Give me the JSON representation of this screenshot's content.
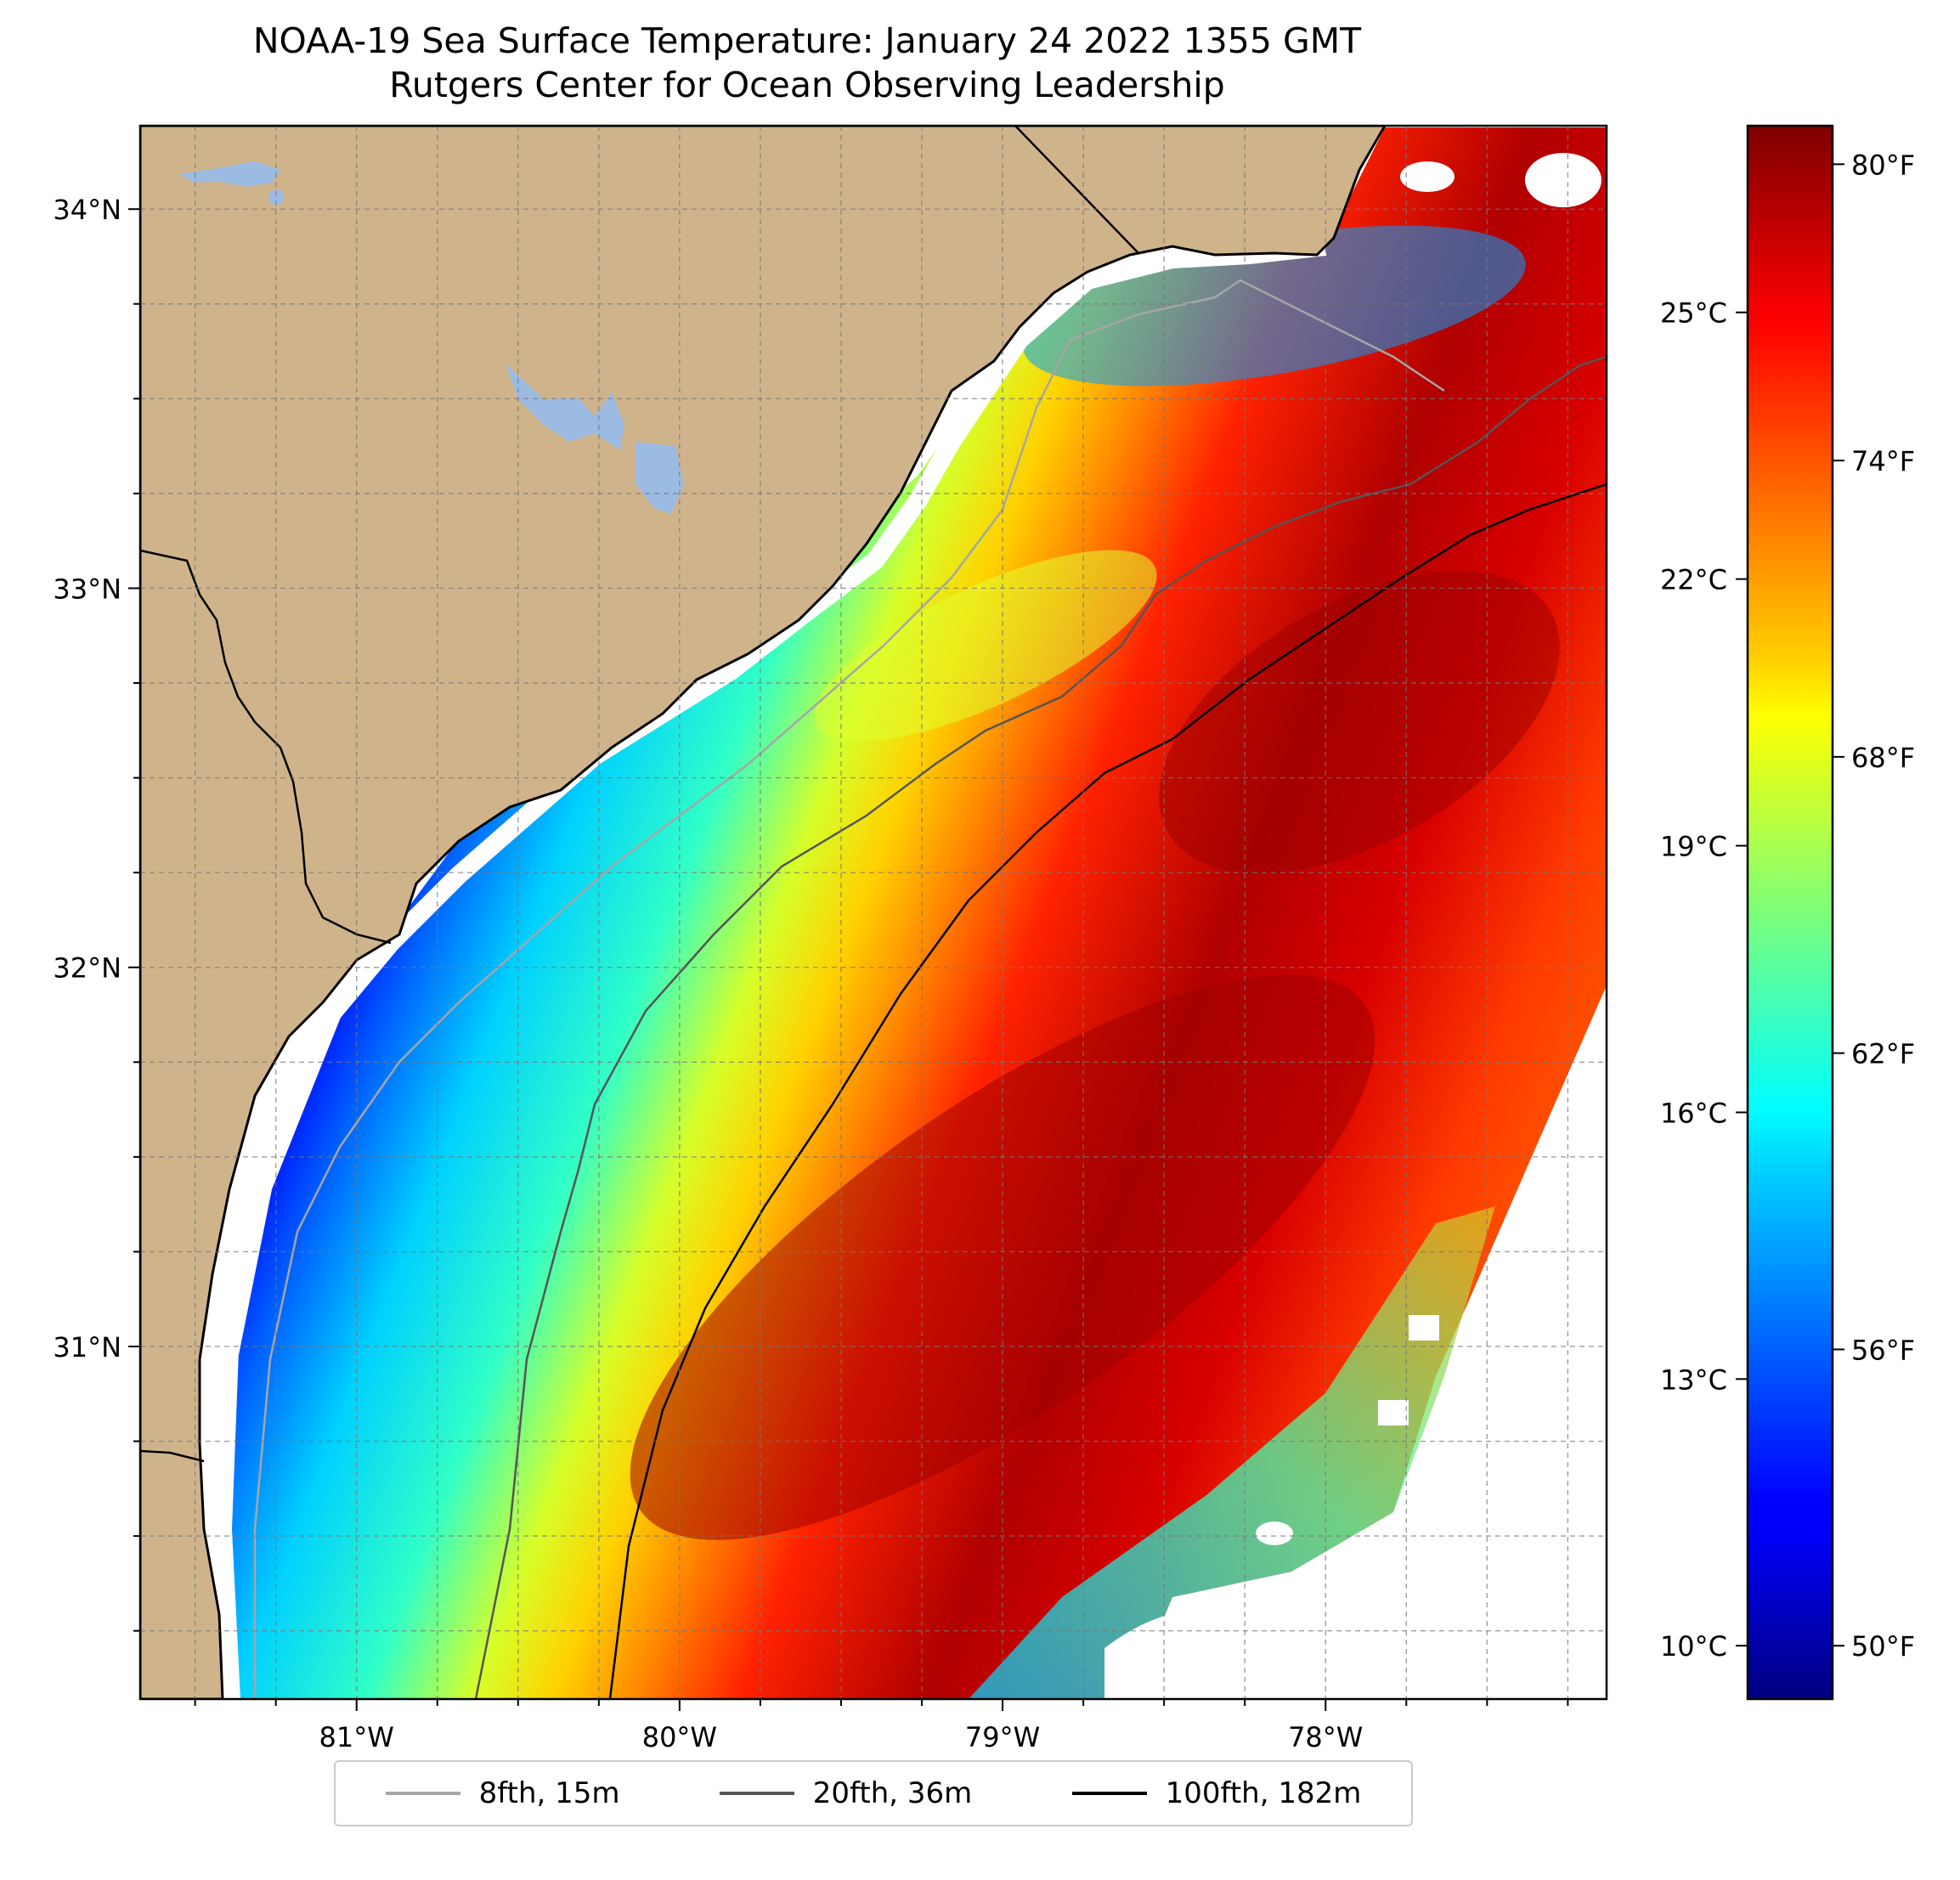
{
  "title": {
    "line1": "NOAA-19 Sea Surface Temperature: January 24 2022 1355 GMT",
    "line2": "Rutgers Center for Ocean Observing Leadership"
  },
  "map": {
    "lon_range": [
      -81.67,
      -77.13
    ],
    "lat_range": [
      30.07,
      34.22
    ],
    "x_ticks": [
      {
        "lon": -81,
        "label": "81°W"
      },
      {
        "lon": -80,
        "label": "80°W"
      },
      {
        "lon": -79,
        "label": "79°W"
      },
      {
        "lon": -78,
        "label": "78°W"
      }
    ],
    "y_ticks": [
      {
        "lat": 31,
        "label": "31°N"
      },
      {
        "lat": 32,
        "label": "32°N"
      },
      {
        "lat": 33,
        "label": "33°N"
      },
      {
        "lat": 34,
        "label": "34°N"
      }
    ],
    "grid_step_deg": 0.25,
    "land_color": "#cfb48b",
    "lake_color": "#9bbbe3",
    "gridlines": true
  },
  "colorbar": {
    "colormap": "jet",
    "range_c": [
      9.4,
      27.1
    ],
    "celsius_ticks": [
      {
        "value": 10,
        "label": "10°C"
      },
      {
        "value": 13,
        "label": "13°C"
      },
      {
        "value": 16,
        "label": "16°C"
      },
      {
        "value": 19,
        "label": "19°C"
      },
      {
        "value": 22,
        "label": "22°C"
      },
      {
        "value": 25,
        "label": "25°C"
      }
    ],
    "fahrenheit_ticks": [
      {
        "value": 50,
        "label": "50°F"
      },
      {
        "value": 56,
        "label": "56°F"
      },
      {
        "value": 62,
        "label": "62°F"
      },
      {
        "value": 68,
        "label": "68°F"
      },
      {
        "value": 74,
        "label": "74°F"
      },
      {
        "value": 80,
        "label": "80°F"
      }
    ]
  },
  "legend": [
    {
      "label": "8fth, 15m",
      "color": "#a6a6a6"
    },
    {
      "label": "20fth, 36m",
      "color": "#555555"
    },
    {
      "label": "100fth, 182m",
      "color": "#000000"
    }
  ]
}
